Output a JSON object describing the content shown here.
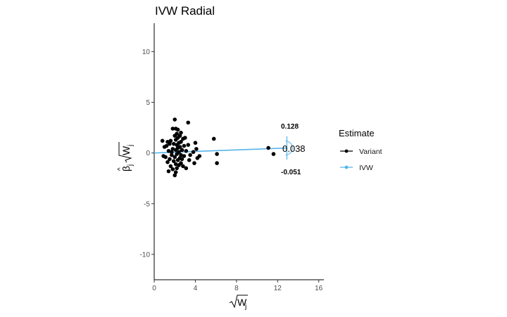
{
  "chart_data": {
    "type": "scatter",
    "title": "IVW Radial",
    "xlim": [
      0,
      16.5
    ],
    "ylim": [
      -12.5,
      12.8
    ],
    "x_ticks": [
      0,
      4,
      8,
      12,
      16
    ],
    "y_ticks": [
      -10,
      -5,
      0,
      5,
      10
    ],
    "legend": {
      "title": "Estimate",
      "position": "right",
      "items": [
        {
          "label": "Variant",
          "color": "#000000"
        },
        {
          "label": "IVW",
          "color": "#56B4E9"
        }
      ]
    },
    "ivw": {
      "slope": 0.038,
      "lower": -0.051,
      "upper": 0.128,
      "color": "#56B4E9"
    },
    "annotations": {
      "estimate": "0.038",
      "upper": "0.128",
      "lower": "-0.051"
    },
    "points": [
      [
        0.8,
        1.2
      ],
      [
        0.9,
        -0.3
      ],
      [
        1.0,
        0.6
      ],
      [
        1.1,
        -0.4
      ],
      [
        1.2,
        0.7
      ],
      [
        1.3,
        1.1
      ],
      [
        1.3,
        -0.9
      ],
      [
        1.4,
        0.2
      ],
      [
        1.4,
        -1.8
      ],
      [
        1.5,
        0.9
      ],
      [
        1.5,
        -0.6
      ],
      [
        1.6,
        1.2
      ],
      [
        1.6,
        -1.3
      ],
      [
        1.7,
        0.1
      ],
      [
        1.7,
        -0.2
      ],
      [
        1.8,
        2.4
      ],
      [
        1.8,
        0.4
      ],
      [
        1.8,
        -1.6
      ],
      [
        1.9,
        -0.8
      ],
      [
        1.9,
        0.9
      ],
      [
        2.0,
        3.3
      ],
      [
        2.0,
        1.7
      ],
      [
        2.0,
        -0.4
      ],
      [
        2.0,
        -2.2
      ],
      [
        2.1,
        2.4
      ],
      [
        2.1,
        1.3
      ],
      [
        2.1,
        0.3
      ],
      [
        2.1,
        -1.1
      ],
      [
        2.1,
        -1.9
      ],
      [
        2.2,
        1.9
      ],
      [
        2.2,
        0.8
      ],
      [
        2.2,
        -0.1
      ],
      [
        2.2,
        -1.5
      ],
      [
        2.3,
        2.3
      ],
      [
        2.3,
        1.5
      ],
      [
        2.3,
        0.5
      ],
      [
        2.3,
        -0.7
      ],
      [
        2.4,
        1.0
      ],
      [
        2.4,
        0.1
      ],
      [
        2.4,
        -1.2
      ],
      [
        2.5,
        1.7
      ],
      [
        2.5,
        0.6
      ],
      [
        2.5,
        -0.5
      ],
      [
        2.6,
        2.0
      ],
      [
        2.6,
        1.1
      ],
      [
        2.6,
        -0.2
      ],
      [
        2.6,
        -1.0
      ],
      [
        2.7,
        0.3
      ],
      [
        2.7,
        -0.6
      ],
      [
        2.8,
        1.4
      ],
      [
        2.8,
        -1.3
      ],
      [
        2.9,
        0.7
      ],
      [
        2.9,
        -0.3
      ],
      [
        3.0,
        1.5
      ],
      [
        3.1,
        0.2
      ],
      [
        3.1,
        -1.5
      ],
      [
        3.3,
        3.0
      ],
      [
        3.3,
        0.8
      ],
      [
        3.4,
        -0.7
      ],
      [
        3.5,
        -0.2
      ],
      [
        3.8,
        0.1
      ],
      [
        3.9,
        -1.0
      ],
      [
        4.0,
        1.0
      ],
      [
        4.1,
        0.4
      ],
      [
        4.2,
        -0.5
      ],
      [
        4.4,
        -0.3
      ],
      [
        5.8,
        1.4
      ],
      [
        6.1,
        -0.1
      ],
      [
        6.1,
        -1.0
      ],
      [
        11.1,
        0.5
      ],
      [
        11.6,
        -0.1
      ]
    ]
  }
}
